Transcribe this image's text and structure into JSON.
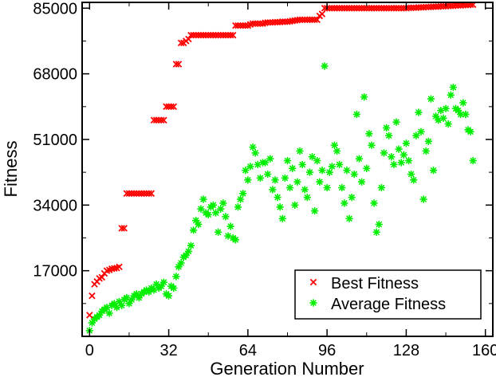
{
  "chart_data": {
    "type": "scatter",
    "title": "",
    "xlabel": "Generation Number",
    "ylabel": "Fitness",
    "xlim": [
      -3,
      163
    ],
    "ylim": [
      0,
      86500
    ],
    "xticks": [
      0,
      32,
      64,
      96,
      128,
      160
    ],
    "yticks": [
      17000,
      34000,
      51000,
      68000,
      85000
    ],
    "grid": false,
    "legend": "bottom-right",
    "colors": {
      "best": "#ff0000",
      "average": "#00ee00"
    },
    "series": [
      {
        "name": "Best Fitness",
        "marker": "x",
        "points": [
          [
            0,
            5500
          ],
          [
            1,
            10500
          ],
          [
            2,
            13500
          ],
          [
            3,
            14200
          ],
          [
            4,
            15000
          ],
          [
            5,
            15300
          ],
          [
            6,
            16300
          ],
          [
            7,
            17000
          ],
          [
            8,
            17200
          ],
          [
            9,
            17500
          ],
          [
            10,
            17600
          ],
          [
            11,
            17700
          ],
          [
            12,
            18000
          ],
          [
            13,
            28000
          ],
          [
            14,
            28000
          ],
          [
            15,
            37000
          ],
          [
            16,
            37000
          ],
          [
            17,
            37000
          ],
          [
            18,
            37000
          ],
          [
            19,
            37000
          ],
          [
            20,
            37000
          ],
          [
            21,
            37000
          ],
          [
            22,
            37000
          ],
          [
            23,
            37000
          ],
          [
            24,
            37000
          ],
          [
            25,
            37000
          ],
          [
            26,
            56000
          ],
          [
            27,
            56000
          ],
          [
            28,
            56000
          ],
          [
            29,
            56000
          ],
          [
            30,
            56000
          ],
          [
            31,
            59500
          ],
          [
            32,
            59500
          ],
          [
            33,
            59500
          ],
          [
            34,
            59500
          ],
          [
            35,
            70500
          ],
          [
            36,
            70500
          ],
          [
            37,
            76000
          ],
          [
            38,
            76000
          ],
          [
            39,
            76500
          ],
          [
            40,
            77000
          ],
          [
            41,
            78000
          ],
          [
            42,
            78000
          ],
          [
            43,
            78000
          ],
          [
            44,
            78000
          ],
          [
            45,
            78000
          ],
          [
            46,
            78000
          ],
          [
            47,
            78000
          ],
          [
            48,
            78000
          ],
          [
            49,
            78000
          ],
          [
            50,
            78000
          ],
          [
            51,
            78000
          ],
          [
            52,
            78000
          ],
          [
            53,
            78000
          ],
          [
            54,
            78000
          ],
          [
            55,
            78000
          ],
          [
            56,
            78000
          ],
          [
            57,
            78000
          ],
          [
            58,
            78000
          ],
          [
            59,
            80500
          ],
          [
            60,
            80500
          ],
          [
            61,
            80500
          ],
          [
            62,
            80500
          ],
          [
            63,
            80500
          ],
          [
            64,
            80500
          ],
          [
            65,
            80800
          ],
          [
            66,
            81000
          ],
          [
            67,
            81000
          ],
          [
            68,
            81000
          ],
          [
            69,
            81000
          ],
          [
            70,
            81000
          ],
          [
            71,
            81200
          ],
          [
            72,
            81300
          ],
          [
            73,
            81300
          ],
          [
            74,
            81300
          ],
          [
            75,
            81400
          ],
          [
            76,
            81400
          ],
          [
            77,
            81400
          ],
          [
            78,
            81500
          ],
          [
            79,
            81500
          ],
          [
            80,
            81500
          ],
          [
            81,
            81600
          ],
          [
            82,
            81700
          ],
          [
            83,
            81800
          ],
          [
            84,
            81900
          ],
          [
            85,
            82000
          ],
          [
            86,
            82000
          ],
          [
            87,
            82000
          ],
          [
            88,
            82000
          ],
          [
            89,
            82000
          ],
          [
            90,
            82000
          ],
          [
            91,
            82000
          ],
          [
            92,
            82000
          ],
          [
            93,
            83000
          ],
          [
            94,
            83500
          ],
          [
            95,
            85000
          ],
          [
            96,
            85000
          ],
          [
            97,
            85000
          ],
          [
            98,
            85000
          ],
          [
            99,
            85000
          ],
          [
            100,
            85000
          ],
          [
            101,
            85000
          ],
          [
            102,
            85000
          ],
          [
            103,
            85000
          ],
          [
            104,
            85000
          ],
          [
            105,
            85000
          ],
          [
            106,
            85000
          ],
          [
            107,
            85000
          ],
          [
            108,
            85000
          ],
          [
            109,
            85000
          ],
          [
            110,
            85000
          ],
          [
            111,
            85000
          ],
          [
            112,
            85000
          ],
          [
            113,
            85000
          ],
          [
            114,
            85000
          ],
          [
            115,
            85000
          ],
          [
            116,
            85000
          ],
          [
            117,
            85000
          ],
          [
            118,
            85000
          ],
          [
            119,
            85000
          ],
          [
            120,
            85000
          ],
          [
            121,
            85000
          ],
          [
            122,
            85000
          ],
          [
            123,
            85000
          ],
          [
            124,
            85000
          ],
          [
            125,
            85000
          ],
          [
            126,
            85000
          ],
          [
            127,
            85000
          ],
          [
            128,
            85000
          ],
          [
            129,
            85100
          ],
          [
            130,
            85100
          ],
          [
            131,
            85100
          ],
          [
            132,
            85100
          ],
          [
            133,
            85200
          ],
          [
            134,
            85200
          ],
          [
            135,
            85200
          ],
          [
            136,
            85300
          ],
          [
            137,
            85300
          ],
          [
            138,
            85300
          ],
          [
            139,
            85400
          ],
          [
            140,
            85400
          ],
          [
            141,
            85400
          ],
          [
            142,
            85500
          ],
          [
            143,
            85500
          ],
          [
            144,
            85500
          ],
          [
            145,
            85600
          ],
          [
            146,
            85600
          ],
          [
            147,
            85600
          ],
          [
            148,
            85700
          ],
          [
            149,
            85700
          ],
          [
            150,
            85700
          ],
          [
            151,
            85800
          ],
          [
            152,
            85800
          ],
          [
            153,
            85800
          ],
          [
            154,
            85900
          ],
          [
            155,
            85900
          ]
        ]
      },
      {
        "name": "Average Fitness",
        "marker": "star",
        "points": [
          [
            0,
            1500
          ],
          [
            1,
            3500
          ],
          [
            2,
            4500
          ],
          [
            3,
            5000
          ],
          [
            4,
            5500
          ],
          [
            5,
            6500
          ],
          [
            6,
            7000
          ],
          [
            7,
            7500
          ],
          [
            8,
            6000
          ],
          [
            9,
            8000
          ],
          [
            10,
            8500
          ],
          [
            11,
            7500
          ],
          [
            12,
            9000
          ],
          [
            13,
            8000
          ],
          [
            14,
            9500
          ],
          [
            15,
            10000
          ],
          [
            16,
            8500
          ],
          [
            17,
            9500
          ],
          [
            18,
            10500
          ],
          [
            19,
            11000
          ],
          [
            20,
            10000
          ],
          [
            21,
            11000
          ],
          [
            22,
            11500
          ],
          [
            23,
            12000
          ],
          [
            24,
            11500
          ],
          [
            25,
            12500
          ],
          [
            26,
            12000
          ],
          [
            27,
            13500
          ],
          [
            28,
            12500
          ],
          [
            29,
            13000
          ],
          [
            30,
            14000
          ],
          [
            31,
            11000
          ],
          [
            32,
            10500
          ],
          [
            33,
            13000
          ],
          [
            34,
            12500
          ],
          [
            35,
            15500
          ],
          [
            36,
            18000
          ],
          [
            37,
            19000
          ],
          [
            38,
            20500
          ],
          [
            39,
            21000
          ],
          [
            40,
            22000
          ],
          [
            41,
            23500
          ],
          [
            42,
            27500
          ],
          [
            43,
            30000
          ],
          [
            44,
            29000
          ],
          [
            45,
            33000
          ],
          [
            46,
            35500
          ],
          [
            47,
            32000
          ],
          [
            48,
            31500
          ],
          [
            49,
            33500
          ],
          [
            50,
            34000
          ],
          [
            51,
            32000
          ],
          [
            52,
            27000
          ],
          [
            53,
            33000
          ],
          [
            54,
            34500
          ],
          [
            55,
            31000
          ],
          [
            56,
            26000
          ],
          [
            57,
            28500
          ],
          [
            58,
            25500
          ],
          [
            59,
            25000
          ],
          [
            60,
            33500
          ],
          [
            61,
            35500
          ],
          [
            62,
            37000
          ],
          [
            63,
            43000
          ],
          [
            64,
            40500
          ],
          [
            65,
            44000
          ],
          [
            66,
            49000
          ],
          [
            67,
            47500
          ],
          [
            68,
            44500
          ],
          [
            69,
            41000
          ],
          [
            70,
            45000
          ],
          [
            71,
            45000
          ],
          [
            72,
            42000
          ],
          [
            73,
            46000
          ],
          [
            74,
            38000
          ],
          [
            75,
            40500
          ],
          [
            76,
            36000
          ],
          [
            77,
            33500
          ],
          [
            78,
            30500
          ],
          [
            79,
            41000
          ],
          [
            80,
            45500
          ],
          [
            81,
            38500
          ],
          [
            82,
            43500
          ],
          [
            83,
            34000
          ],
          [
            84,
            40000
          ],
          [
            85,
            48000
          ],
          [
            86,
            44500
          ],
          [
            87,
            38000
          ],
          [
            88,
            36000
          ],
          [
            89,
            42500
          ],
          [
            90,
            46500
          ],
          [
            91,
            32500
          ],
          [
            92,
            45500
          ],
          [
            93,
            40000
          ],
          [
            94,
            43000
          ],
          [
            95,
            70000
          ],
          [
            96,
            38500
          ],
          [
            97,
            42500
          ],
          [
            98,
            44000
          ],
          [
            99,
            49500
          ],
          [
            100,
            48000
          ],
          [
            101,
            44500
          ],
          [
            102,
            38500
          ],
          [
            103,
            34500
          ],
          [
            104,
            43000
          ],
          [
            105,
            30500
          ],
          [
            106,
            36000
          ],
          [
            107,
            42000
          ],
          [
            108,
            57500
          ],
          [
            109,
            46000
          ],
          [
            110,
            40000
          ],
          [
            111,
            62000
          ],
          [
            112,
            43500
          ],
          [
            113,
            52500
          ],
          [
            114,
            49500
          ],
          [
            115,
            34500
          ],
          [
            116,
            27000
          ],
          [
            117,
            29000
          ],
          [
            118,
            38500
          ],
          [
            119,
            47500
          ],
          [
            120,
            54000
          ],
          [
            121,
            52000
          ],
          [
            122,
            46500
          ],
          [
            123,
            44500
          ],
          [
            124,
            55500
          ],
          [
            125,
            48500
          ],
          [
            126,
            45000
          ],
          [
            127,
            47000
          ],
          [
            128,
            50000
          ],
          [
            129,
            45500
          ],
          [
            130,
            42000
          ],
          [
            131,
            40500
          ],
          [
            132,
            52000
          ],
          [
            133,
            58000
          ],
          [
            134,
            53000
          ],
          [
            135,
            35500
          ],
          [
            136,
            48000
          ],
          [
            137,
            50500
          ],
          [
            138,
            61500
          ],
          [
            139,
            43000
          ],
          [
            140,
            57000
          ],
          [
            141,
            56000
          ],
          [
            142,
            58500
          ],
          [
            143,
            56500
          ],
          [
            144,
            59000
          ],
          [
            145,
            55000
          ],
          [
            146,
            62500
          ],
          [
            147,
            64500
          ],
          [
            148,
            59000
          ],
          [
            149,
            58500
          ],
          [
            150,
            57500
          ],
          [
            151,
            60500
          ],
          [
            152,
            57500
          ],
          [
            153,
            53500
          ],
          [
            154,
            53000
          ],
          [
            155,
            45500
          ]
        ]
      }
    ]
  }
}
